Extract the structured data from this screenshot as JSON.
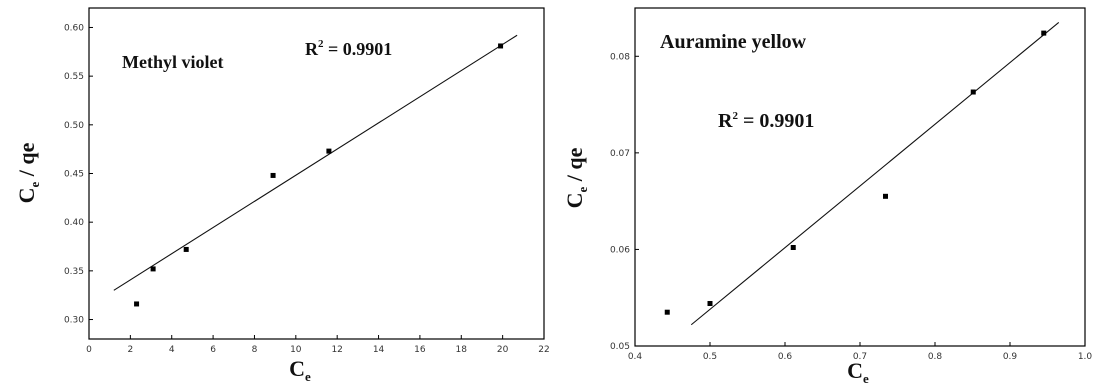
{
  "chart_data": [
    {
      "type": "scatter",
      "title": "Methyl violet",
      "annotation": {
        "r2_label": "R",
        "r2_sup": "2",
        "r2_value": " = 0.9901"
      },
      "xlabel": {
        "main": "C",
        "sub": "e"
      },
      "ylabel": {
        "main": "C",
        "sub": "e",
        "rest": " / qe"
      },
      "xlim": [
        0,
        22
      ],
      "ylim": [
        0.28,
        0.62
      ],
      "xticks": [
        0,
        2,
        4,
        6,
        8,
        10,
        12,
        14,
        16,
        18,
        20,
        22
      ],
      "xtick_labels": [
        "0",
        "2",
        "4",
        "6",
        "8",
        "10",
        "12",
        "14",
        "16",
        "18",
        "20",
        "22"
      ],
      "yticks": [
        0.3,
        0.35,
        0.4,
        0.45,
        0.5,
        0.55,
        0.6
      ],
      "ytick_labels": [
        "0.30",
        "0.35",
        "0.40",
        "0.45",
        "0.50",
        "0.55",
        "0.60"
      ],
      "points": [
        {
          "x": 2.3,
          "y": 0.316
        },
        {
          "x": 3.1,
          "y": 0.352
        },
        {
          "x": 4.7,
          "y": 0.372
        },
        {
          "x": 8.9,
          "y": 0.448
        },
        {
          "x": 11.6,
          "y": 0.473
        },
        {
          "x": 19.9,
          "y": 0.581
        }
      ],
      "fit_line": {
        "x": [
          1.2,
          20.7
        ],
        "y": [
          0.33,
          0.592
        ]
      },
      "grid": false
    },
    {
      "type": "scatter",
      "title": "Auramine yellow",
      "annotation": {
        "r2_label": "R",
        "r2_sup": "2",
        "r2_value": " = 0.9901"
      },
      "xlabel": {
        "main": "C",
        "sub": "e"
      },
      "ylabel": {
        "main": "C",
        "sub": "e",
        "rest": " / qe"
      },
      "xlim": [
        0.4,
        1.0
      ],
      "ylim": [
        0.05,
        0.085
      ],
      "xticks": [
        0.4,
        0.5,
        0.6,
        0.7,
        0.8,
        0.9,
        1.0
      ],
      "xtick_labels": [
        "0.4",
        "0.5",
        "0.6",
        "0.7",
        "0.8",
        "0.9",
        "1.0"
      ],
      "yticks": [
        0.05,
        0.06,
        0.07,
        0.08
      ],
      "ytick_labels": [
        "0.05",
        "0.06",
        "0.07",
        "0.08"
      ],
      "points": [
        {
          "x": 0.443,
          "y": 0.0535
        },
        {
          "x": 0.5,
          "y": 0.0544
        },
        {
          "x": 0.611,
          "y": 0.0602
        },
        {
          "x": 0.734,
          "y": 0.0655
        },
        {
          "x": 0.851,
          "y": 0.0763
        },
        {
          "x": 0.945,
          "y": 0.0824
        }
      ],
      "fit_line": {
        "x": [
          0.475,
          0.965
        ],
        "y": [
          0.0522,
          0.0835
        ]
      },
      "grid": false
    }
  ]
}
